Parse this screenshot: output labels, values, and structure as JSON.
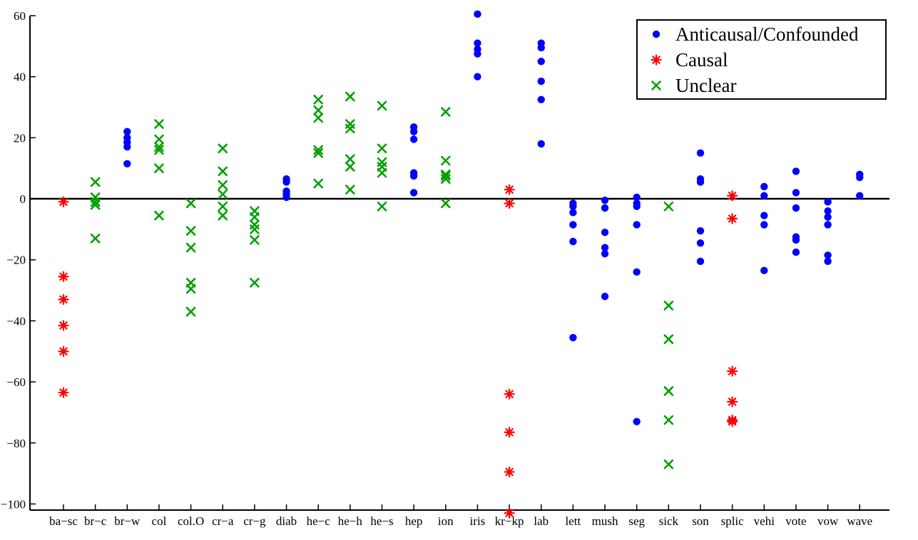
{
  "chart_data": {
    "type": "scatter",
    "categories": [
      "ba−sc",
      "br−c",
      "br−w",
      "col",
      "col.O",
      "cr−a",
      "cr−g",
      "diab",
      "he−c",
      "he−h",
      "he−s",
      "hep",
      "ion",
      "iris",
      "kr−kp",
      "lab",
      "lett",
      "mush",
      "seg",
      "sick",
      "son",
      "splic",
      "vehi",
      "vote",
      "vow",
      "wave"
    ],
    "ylim": [
      -102,
      60
    ],
    "yticks": [
      60,
      40,
      20,
      0,
      -20,
      -40,
      -60,
      -80,
      -100
    ],
    "ytick_labels": [
      "60",
      "40",
      "20",
      "0",
      "−20",
      "−40",
      "−60",
      "−80",
      "−100"
    ],
    "zero_line": true,
    "grid": false,
    "legend_position": "top-right",
    "series": [
      {
        "name": "Anticausal/Confounded",
        "marker": "dot",
        "color": "#0000ff",
        "points": [
          [
            "br−w",
            22
          ],
          [
            "br−w",
            20
          ],
          [
            "br−w",
            18.5
          ],
          [
            "br−w",
            17
          ],
          [
            "br−w",
            11.5
          ],
          [
            "diab",
            6.5
          ],
          [
            "diab",
            5.5
          ],
          [
            "diab",
            2.5
          ],
          [
            "diab",
            1.5
          ],
          [
            "diab",
            0.5
          ],
          [
            "hep",
            23.5
          ],
          [
            "hep",
            22
          ],
          [
            "hep",
            19.5
          ],
          [
            "hep",
            8.5
          ],
          [
            "hep",
            7.5
          ],
          [
            "hep",
            2
          ],
          [
            "iris",
            60.5
          ],
          [
            "iris",
            51
          ],
          [
            "iris",
            49
          ],
          [
            "iris",
            47.5
          ],
          [
            "iris",
            40
          ],
          [
            "lab",
            51
          ],
          [
            "lab",
            49.5
          ],
          [
            "lab",
            45
          ],
          [
            "lab",
            38.5
          ],
          [
            "lab",
            32.5
          ],
          [
            "lab",
            18
          ],
          [
            "lett",
            -1.5
          ],
          [
            "lett",
            -2.5
          ],
          [
            "lett",
            -4.5
          ],
          [
            "lett",
            -8.5
          ],
          [
            "lett",
            -14
          ],
          [
            "lett",
            -45.5
          ],
          [
            "mush",
            -0.5
          ],
          [
            "mush",
            -3
          ],
          [
            "mush",
            -11
          ],
          [
            "mush",
            -16
          ],
          [
            "mush",
            -18
          ],
          [
            "mush",
            -32
          ],
          [
            "seg",
            0.5
          ],
          [
            "seg",
            -1.5
          ],
          [
            "seg",
            -2.5
          ],
          [
            "seg",
            -8.5
          ],
          [
            "seg",
            -24
          ],
          [
            "seg",
            -73
          ],
          [
            "son",
            15
          ],
          [
            "son",
            6.5
          ],
          [
            "son",
            5.5
          ],
          [
            "son",
            -10.5
          ],
          [
            "son",
            -14.5
          ],
          [
            "son",
            -20.5
          ],
          [
            "vehi",
            4
          ],
          [
            "vehi",
            1
          ],
          [
            "vehi",
            -5.5
          ],
          [
            "vehi",
            -8.5
          ],
          [
            "vehi",
            -23.5
          ],
          [
            "vote",
            9
          ],
          [
            "vote",
            2
          ],
          [
            "vote",
            -3
          ],
          [
            "vote",
            -12.5
          ],
          [
            "vote",
            -13.5
          ],
          [
            "vote",
            -17.5
          ],
          [
            "vow",
            -1
          ],
          [
            "vow",
            -4
          ],
          [
            "vow",
            -6
          ],
          [
            "vow",
            -8.5
          ],
          [
            "vow",
            -18.5
          ],
          [
            "vow",
            -20.5
          ],
          [
            "wave",
            8
          ],
          [
            "wave",
            7
          ],
          [
            "wave",
            1
          ]
        ]
      },
      {
        "name": "Causal",
        "marker": "asterisk",
        "color": "#ff0000",
        "points": [
          [
            "ba−sc",
            -1
          ],
          [
            "ba−sc",
            -25.5
          ],
          [
            "ba−sc",
            -33
          ],
          [
            "ba−sc",
            -41.5
          ],
          [
            "ba−sc",
            -50
          ],
          [
            "ba−sc",
            -63.5
          ],
          [
            "kr−kp",
            3
          ],
          [
            "kr−kp",
            -1.5
          ],
          [
            "kr−kp",
            -64
          ],
          [
            "kr−kp",
            -76.5
          ],
          [
            "kr−kp",
            -89.5
          ],
          [
            "kr−kp",
            -103
          ],
          [
            "splic",
            1
          ],
          [
            "splic",
            -6.5
          ],
          [
            "splic",
            -56.5
          ],
          [
            "splic",
            -66.5
          ],
          [
            "splic",
            -72.5
          ],
          [
            "splic",
            -73
          ]
        ]
      },
      {
        "name": "Unclear",
        "marker": "x",
        "color": "#00a000",
        "points": [
          [
            "br−c",
            5.5
          ],
          [
            "br−c",
            0.5
          ],
          [
            "br−c",
            -1
          ],
          [
            "br−c",
            -2
          ],
          [
            "br−c",
            -13
          ],
          [
            "col",
            24.5
          ],
          [
            "col",
            19.5
          ],
          [
            "col",
            17
          ],
          [
            "col",
            16
          ],
          [
            "col",
            10
          ],
          [
            "col",
            -5.5
          ],
          [
            "col.O",
            -1.5
          ],
          [
            "col.O",
            -10.5
          ],
          [
            "col.O",
            -16
          ],
          [
            "col.O",
            -27.5
          ],
          [
            "col.O",
            -29.5
          ],
          [
            "col.O",
            -37
          ],
          [
            "cr−a",
            16.5
          ],
          [
            "cr−a",
            9
          ],
          [
            "cr−a",
            4.5
          ],
          [
            "cr−a",
            1.5
          ],
          [
            "cr−a",
            -2.5
          ],
          [
            "cr−a",
            -5.5
          ],
          [
            "cr−g",
            -4
          ],
          [
            "cr−g",
            -6
          ],
          [
            "cr−g",
            -8.5
          ],
          [
            "cr−g",
            -10
          ],
          [
            "cr−g",
            -13.5
          ],
          [
            "cr−g",
            -27.5
          ],
          [
            "he−c",
            32.5
          ],
          [
            "he−c",
            29
          ],
          [
            "he−c",
            26.5
          ],
          [
            "he−c",
            16
          ],
          [
            "he−c",
            15
          ],
          [
            "he−c",
            5
          ],
          [
            "he−h",
            33.5
          ],
          [
            "he−h",
            24.5
          ],
          [
            "he−h",
            23
          ],
          [
            "he−h",
            13
          ],
          [
            "he−h",
            10.5
          ],
          [
            "he−h",
            3
          ],
          [
            "he−s",
            30.5
          ],
          [
            "he−s",
            16.5
          ],
          [
            "he−s",
            12
          ],
          [
            "he−s",
            10.5
          ],
          [
            "he−s",
            8.5
          ],
          [
            "he−s",
            -2.5
          ],
          [
            "ion",
            28.5
          ],
          [
            "ion",
            12.5
          ],
          [
            "ion",
            8
          ],
          [
            "ion",
            7.5
          ],
          [
            "ion",
            6.5
          ],
          [
            "ion",
            -1.5
          ],
          [
            "sick",
            -2.5
          ],
          [
            "sick",
            -35
          ],
          [
            "sick",
            -46
          ],
          [
            "sick",
            -63
          ],
          [
            "sick",
            -72.5
          ],
          [
            "sick",
            -87
          ]
        ]
      }
    ]
  }
}
